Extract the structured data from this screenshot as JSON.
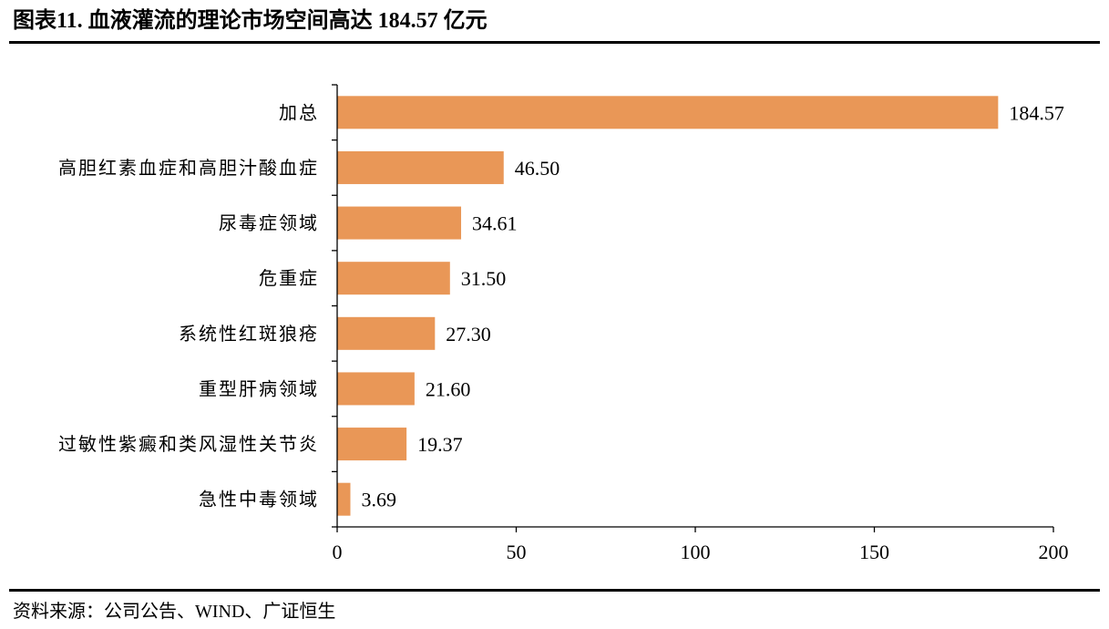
{
  "header": {
    "title": "图表11.  血液灌流的理论市场空间高达 184.57 亿元"
  },
  "footer": {
    "source": "资料来源：公司公告、WIND、广证恒生"
  },
  "colors": {
    "bar": "#E99757",
    "axis": "#000000"
  },
  "chart_data": {
    "type": "bar",
    "orientation": "horizontal",
    "title": "",
    "xlabel": "",
    "ylabel": "",
    "categories": [
      "加总",
      "高胆红素血症和高胆汁酸血症",
      "尿毒症领域",
      "危重症",
      "系统性红斑狼疮",
      "重型肝病领域",
      "过敏性紫癜和类风湿性关节炎",
      "急性中毒领域"
    ],
    "values": [
      184.57,
      46.5,
      34.61,
      31.5,
      27.3,
      21.6,
      19.37,
      3.69
    ],
    "value_labels": [
      "184.57",
      "46.50",
      "34.61",
      "31.50",
      "27.30",
      "21.60",
      "19.37",
      "3.69"
    ],
    "xlim": [
      0,
      200
    ],
    "xticks": [
      0,
      50,
      100,
      150,
      200
    ],
    "xtick_labels": [
      "0",
      "50",
      "100",
      "150",
      "200"
    ],
    "grid": false,
    "legend": "none"
  }
}
